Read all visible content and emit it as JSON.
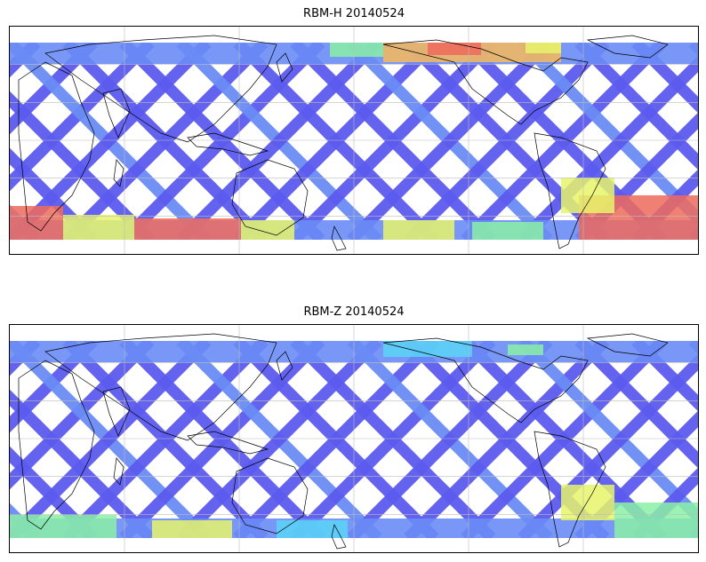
{
  "panels": [
    {
      "title": "RBM-H 20140524",
      "colormap": "jet",
      "palette": [
        "#5b5bef",
        "#6a8cf5",
        "#5bd3f7",
        "#8af0a5",
        "#e6f56a",
        "#f7b85c",
        "#ee6a5c"
      ],
      "high_south_lat": true,
      "high_north_pacific": true
    },
    {
      "title": "RBM-Z 20140524",
      "colormap": "jet",
      "palette": [
        "#5b5bef",
        "#6a8cf5",
        "#5bd3f7",
        "#8af0a5",
        "#e6f56a",
        "#f7b85c",
        "#ee6a5c"
      ],
      "high_south_lat": false,
      "high_north_pacific": false
    }
  ],
  "map": {
    "projection": "equirectangular",
    "central_longitude": 180,
    "coastline_color": "#000000",
    "gridline_color": "#bdbdbd"
  }
}
